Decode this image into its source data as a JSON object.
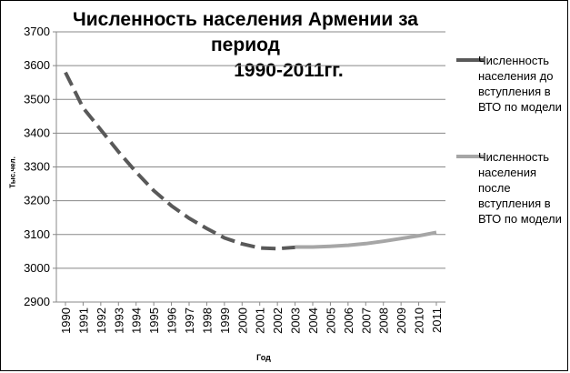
{
  "chart_data": {
    "type": "line",
    "title_line1": "Численность населения Армении за период",
    "title_line2": "1990-2011гг.",
    "xlabel": "Год",
    "ylabel": "Тыс.чел.",
    "ylim": [
      2900,
      3700
    ],
    "yticks": [
      2900,
      3000,
      3100,
      3200,
      3300,
      3400,
      3500,
      3600,
      3700
    ],
    "categories": [
      "1990",
      "1991",
      "1992",
      "1993",
      "1994",
      "1995",
      "1996",
      "1997",
      "1998",
      "1999",
      "2000",
      "2001",
      "2002",
      "2003",
      "2004",
      "2005",
      "2006",
      "2007",
      "2008",
      "2009",
      "2010",
      "2011"
    ],
    "grid": true,
    "legend_position": "right",
    "series": [
      {
        "name": "Численность населения до вступления в ВТО по модели",
        "color": "#595959",
        "style": "dashed",
        "values": [
          3580,
          3475,
          3410,
          3345,
          3285,
          3230,
          3185,
          3148,
          3118,
          3090,
          3072,
          3060,
          3058,
          3062,
          null,
          null,
          null,
          null,
          null,
          null,
          null,
          null
        ]
      },
      {
        "name": "Численность населения после вступления в ВТО по модели",
        "color": "#a6a6a6",
        "style": "solid",
        "values": [
          null,
          null,
          null,
          null,
          null,
          null,
          null,
          null,
          null,
          null,
          null,
          null,
          null,
          3063,
          3063,
          3065,
          3068,
          3073,
          3080,
          3088,
          3096,
          3106
        ]
      }
    ]
  }
}
